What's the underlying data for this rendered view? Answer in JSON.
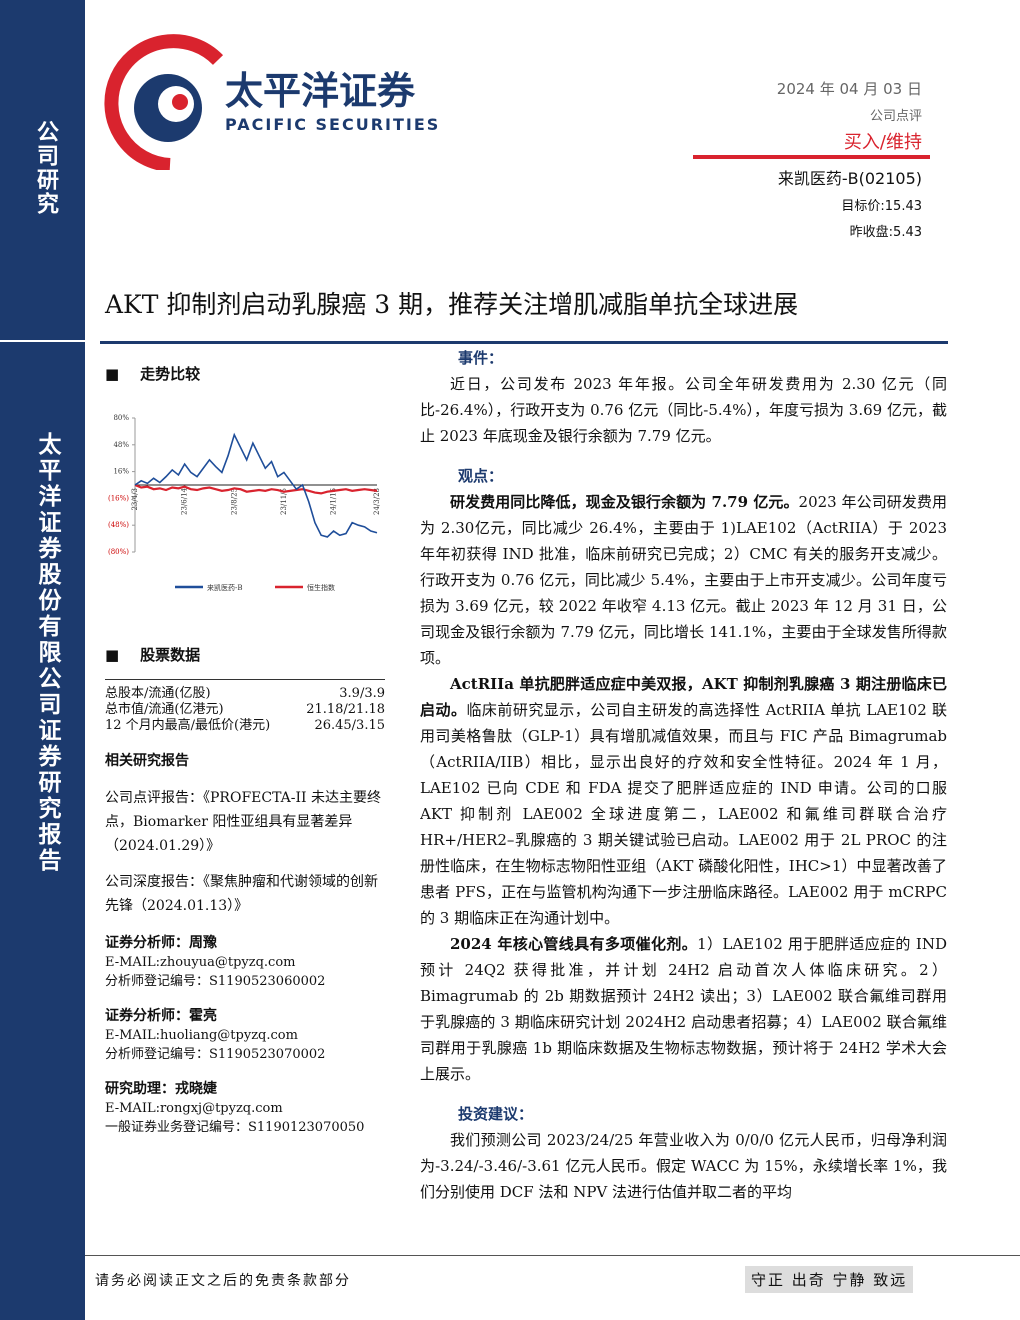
{
  "header": {
    "company_cn": "太平洋证券",
    "company_en": "PACIFIC SECURITIES",
    "date": "2024 年 04 月 03 日",
    "report_type": "公司点评",
    "rating": "买入/维持",
    "stock": "来凯医药-B(02105)",
    "target_price": "目标价:15.43",
    "last_close": "昨收盘:5.43"
  },
  "sidebar": {
    "category": "公司研究",
    "org": "太平洋证券股份有限公司证券研究报告"
  },
  "title": "AKT 抑制剂启动乳腺癌 3 期，推荐关注增肌减脂单抗全球进展",
  "trend": {
    "heading": "走势比较",
    "chart_data": {
      "type": "line",
      "categories": [
        "23/4/3",
        null,
        null,
        null,
        null,
        null,
        null,
        null,
        "23/6/14",
        null,
        null,
        null,
        null,
        null,
        null,
        null,
        "23/8/25",
        null,
        null,
        null,
        null,
        null,
        null,
        null,
        "23/11/5",
        null,
        null,
        null,
        null,
        null,
        null,
        null,
        "24/1/16",
        null,
        null,
        null,
        null,
        null,
        null,
        "24/3/28"
      ],
      "series": [
        {
          "name": "来凯医药-B",
          "color": "#1f4e9a",
          "values": [
            0,
            5,
            2,
            8,
            3,
            10,
            18,
            12,
            25,
            15,
            10,
            20,
            30,
            22,
            15,
            35,
            60,
            45,
            30,
            50,
            35,
            20,
            28,
            10,
            15,
            5,
            -5,
            0,
            -20,
            -45,
            -60,
            -62,
            -55,
            -60,
            -58,
            -45,
            -48,
            -50,
            -55,
            -57
          ]
        },
        {
          "name": "恒生指数",
          "color": "#d9232e",
          "values": [
            0,
            -3,
            -2,
            -5,
            -4,
            -6,
            -3,
            -4,
            -2,
            -5,
            -6,
            -4,
            -3,
            -5,
            -7,
            -6,
            -4,
            -5,
            -8,
            -7,
            -6,
            -7,
            -5,
            -6,
            -8,
            -7,
            -6,
            -5,
            -7,
            -9,
            -10,
            -8,
            -7,
            -6,
            -5,
            -7,
            -6,
            -5,
            -6,
            -7
          ]
        }
      ],
      "ylim": [
        -80,
        80
      ],
      "yticks": [
        {
          "value": 80,
          "label": "80%"
        },
        {
          "value": 48,
          "label": "48%"
        },
        {
          "value": 16,
          "label": "16%"
        },
        {
          "value": -16,
          "label": "(16%)"
        },
        {
          "value": -48,
          "label": "(48%)"
        },
        {
          "value": -80,
          "label": "(80%)"
        }
      ]
    }
  },
  "stock_data": {
    "heading": "股票数据",
    "rows": [
      [
        "总股本/流通(亿股)",
        "3.9/3.9"
      ],
      [
        "总市值/流通(亿港元)",
        "21.18/21.18"
      ],
      [
        "12 个月内最高/最低价(港元)",
        "26.45/3.15"
      ]
    ]
  },
  "related": {
    "heading": "相关研究报告",
    "items": [
      "公司点评报告：《PROFECTA-II 未达主要终点，Biomarker 阳性亚组具有显著差异（2024.01.29）》",
      "公司深度报告：《聚焦肿瘤和代谢领域的创新先锋（2024.01.13）》"
    ]
  },
  "analysts": [
    {
      "title": "证券分析师：周豫",
      "email": "E-MAIL:zhouyua@tpyzq.com",
      "reg": "分析师登记编号：S1190523060002"
    },
    {
      "title": "证券分析师：霍亮",
      "email": "E-MAIL:huoliang@tpyzq.com",
      "reg": "分析师登记编号：S1190523070002"
    },
    {
      "title": "研究助理：戎晓婕",
      "email": "E-MAIL:rongxj@tpyzq.com",
      "reg": "一般证券业务登记编号：S1190123070050"
    }
  ],
  "body": {
    "sections": [
      {
        "heading": "事件：",
        "paragraphs": [
          {
            "text": "近日，公司发布 2023 年年报。公司全年研发费用为 2.30 亿元（同比-26.4%），行政开支为 0.76 亿元（同比-5.4%），年度亏损为 3.69 亿元，截止 2023 年底现金及银行余额为 7.79 亿元。"
          }
        ]
      },
      {
        "heading": "观点：",
        "paragraphs": [
          {
            "lead": "研发费用同比降低，现金及银行余额为 7.79 亿元。",
            "text": "2023 年公司研发费用为 2.30亿元，同比减少 26.4%，主要由于 1)LAE102（ActRIIA）于 2023 年年初获得 IND 批准，临床前研究已完成；2）CMC 有关的服务开支减少。行政开支为 0.76 亿元，同比减少 5.4%，主要由于上市开支减少。公司年度亏损为 3.69 亿元，较 2022 年收窄 4.13 亿元。截止 2023 年 12 月 31 日，公司现金及银行余额为 7.79 亿元，同比增长 141.1%，主要由于全球发售所得款项。"
          },
          {
            "lead": "ActRIIa 单抗肥胖适应症中美双报，AKT 抑制剂乳腺癌 3 期注册临床已启动。",
            "text": "临床前研究显示，公司自主研发的高选择性 ActRIIA 单抗 LAE102 联用司美格鲁肽（GLP-1）具有增肌减值效果，而且与 FIC 产品 Bimagrumab（ActRIIA/IIB）相比，显示出良好的疗效和安全性特征。2024 年 1 月，LAE102 已向 CDE 和 FDA 提交了肥胖适应症的 IND 申请。公司的口服 AKT 抑制剂 LAE002 全球进度第二，LAE002 和氟维司群联合治疗 HR+/HER2–乳腺癌的 3 期关键试验已启动。LAE002 用于 2L PROC 的注册性临床，在生物标志物阳性亚组（AKT 磷酸化阳性，IHC>1）中显著改善了患者 PFS，正在与监管机构沟通下一步注册临床路径。LAE002 用于 mCRPC 的 3 期临床正在沟通计划中。"
          },
          {
            "lead": "2024 年核心管线具有多项催化剂。",
            "text": "1）LAE102 用于肥胖适应症的 IND 预计 24Q2 获得批准，并计划 24H2 启动首次人体临床研究。2）Bimagrumab 的 2b 期数据预计 24H2 读出；3）LAE002 联合氟维司群用于乳腺癌的 3 期临床研究计划 2024H2 启动患者招募；4）LAE002 联合氟维司群用于乳腺癌 1b 期临床数据及生物标志物数据，预计将于 24H2 学术大会上展示。"
          }
        ]
      },
      {
        "heading": "投资建议：",
        "paragraphs": [
          {
            "text": "我们预测公司 2023/24/25 年营业收入为 0/0/0 亿元人民币，归母净利润为-3.24/-3.46/-3.61 亿元人民币。假定 WACC 为 15%，永续增长率 1%，我们分别使用 DCF 法和 NPV 法进行估值并取二者的平均"
          }
        ]
      }
    ]
  },
  "footer": {
    "disclaimer": "请务必阅读正文之后的免责条款部分",
    "motto": "守正 出奇 宁静 致远"
  }
}
